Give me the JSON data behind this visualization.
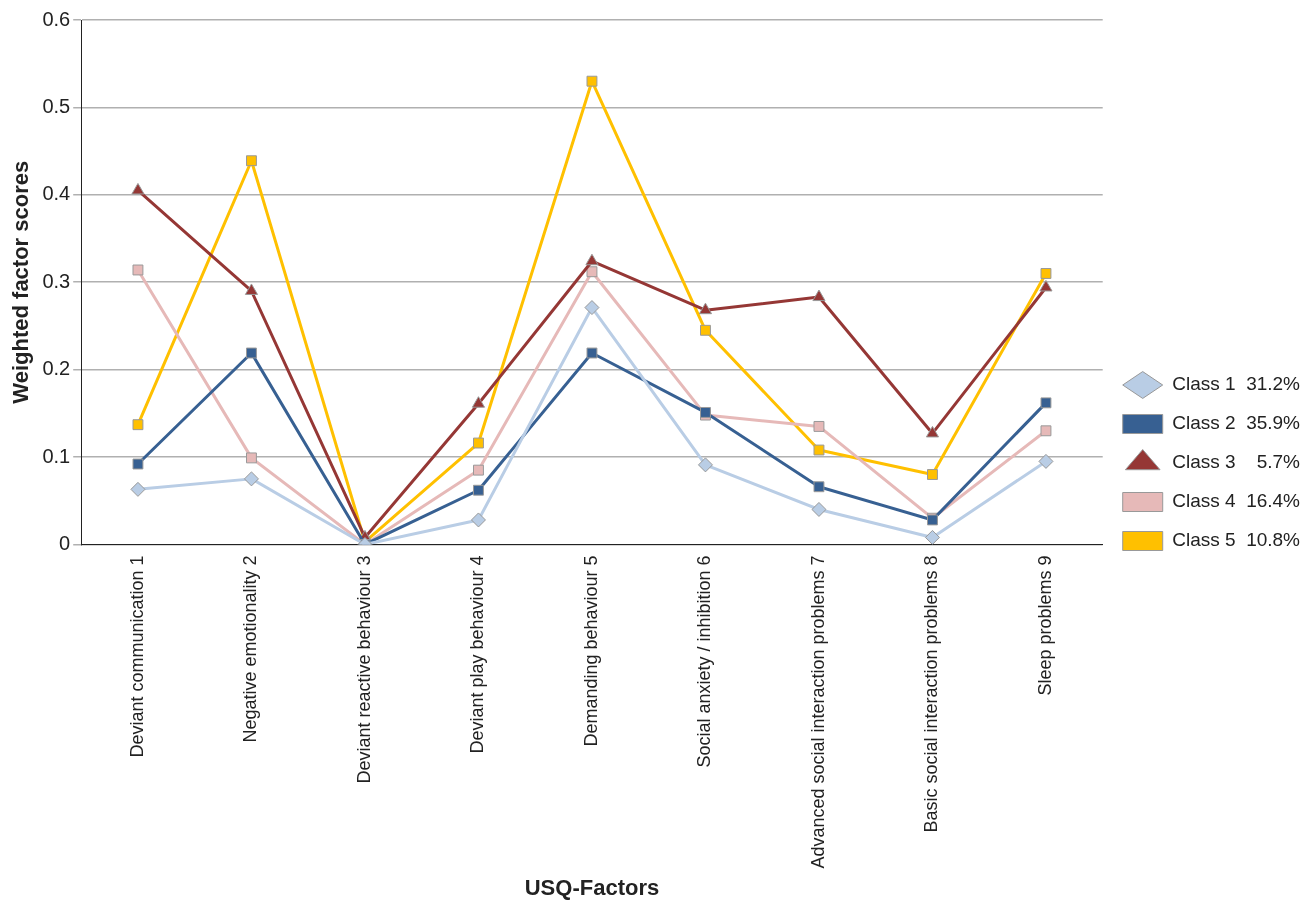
{
  "chart_data": {
    "type": "line",
    "xlabel": "USQ-Factors",
    "ylabel": "Weighted factor scores",
    "categories": [
      "Deviant communication 1",
      "Negative emotionality 2",
      "Deviant reactive behaviour 3",
      "Deviant play behaviour 4",
      "Demanding behaviour 5",
      "Social anxiety / inhibition 6",
      "Advanced social interaction problems 7",
      "Basic social interaction problems 8",
      "Sleep problems 9"
    ],
    "series": [
      {
        "name": "Class 1  31.2%",
        "color": "#b9cde5",
        "marker": "diamond",
        "values": [
          0.063,
          0.075,
          0,
          0.028,
          0.271,
          0.091,
          0.04,
          0.008,
          0.095
        ]
      },
      {
        "name": "Class 2  35.9%",
        "color": "#376092",
        "marker": "square",
        "values": [
          0.092,
          0.219,
          0,
          0.062,
          0.219,
          0.151,
          0.066,
          0.028,
          0.162
        ]
      },
      {
        "name": "Class 3    5.7%",
        "color": "#953735",
        "marker": "triangle",
        "values": [
          0.405,
          0.29,
          0.008,
          0.161,
          0.324,
          0.268,
          0.283,
          0.127,
          0.294
        ]
      },
      {
        "name": "Class 4  16.4%",
        "color": "#e6b9b8",
        "marker": "square",
        "values": [
          0.314,
          0.099,
          0,
          0.085,
          0.312,
          0.148,
          0.135,
          0.03,
          0.13
        ]
      },
      {
        "name": "Class 5  10.8%",
        "color": "#ffc000",
        "marker": "square",
        "values": [
          0.137,
          0.439,
          0.003,
          0.116,
          0.53,
          0.245,
          0.108,
          0.08,
          0.31
        ]
      }
    ],
    "ylim": [
      0,
      0.6
    ],
    "yticks": [
      0,
      0.1,
      0.2,
      0.3,
      0.4,
      0.5,
      0.6
    ],
    "grid": "y",
    "legend": "right",
    "line_style": "solid"
  }
}
